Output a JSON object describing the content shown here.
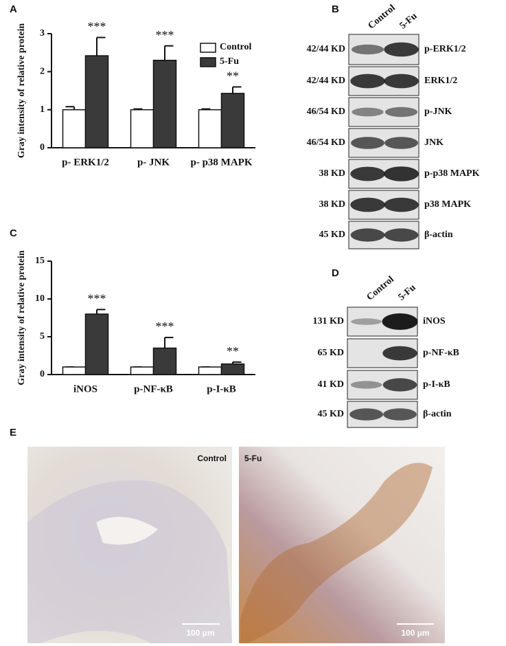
{
  "chart_data": [
    {
      "type": "bar",
      "ylabel": "Gray intensity of relative protein",
      "categories": [
        "p- ERK1/2",
        "p- JNK",
        "p- p38 MAPK"
      ],
      "series": [
        {
          "name": "Control",
          "color": "#ffffff",
          "values": [
            1.0,
            1.0,
            1.0
          ],
          "errors": [
            0.08,
            0.02,
            0.02
          ]
        },
        {
          "name": "5-Fu",
          "color": "#3a3a3a",
          "values": [
            2.42,
            2.3,
            1.43
          ],
          "errors": [
            0.48,
            0.38,
            0.17
          ],
          "annotations": [
            "***",
            "***",
            "**"
          ]
        }
      ],
      "ylim": [
        0,
        3
      ],
      "yticks": [
        0,
        1,
        2,
        3
      ],
      "legend": "top-right"
    },
    {
      "type": "bar",
      "ylabel": "Gray intensity of relative protein",
      "categories": [
        "iNOS",
        "p-NF-κB",
        "p-I-κB"
      ],
      "series": [
        {
          "name": "Control",
          "color": "#ffffff",
          "values": [
            1.0,
            1.0,
            1.0
          ],
          "errors": [
            0,
            0,
            0
          ]
        },
        {
          "name": "5-Fu",
          "color": "#3a3a3a",
          "values": [
            8.0,
            3.5,
            1.4
          ],
          "errors": [
            0.6,
            1.4,
            0.25
          ],
          "annotations": [
            "***",
            "***",
            "**"
          ]
        }
      ],
      "ylim": [
        0,
        15
      ],
      "yticks": [
        0,
        5,
        10,
        15
      ]
    }
  ],
  "panels": [
    "A",
    "B",
    "C",
    "D",
    "E"
  ],
  "blot_b": {
    "lanes": [
      "Control",
      "5-Fu"
    ],
    "rows": [
      {
        "size": "42/44 KD",
        "label": "p-ERK1/2"
      },
      {
        "size": "42/44 KD",
        "label": "ERK1/2"
      },
      {
        "size": "46/54 KD",
        "label": "p-JNK"
      },
      {
        "size": "46/54 KD",
        "label": "JNK"
      },
      {
        "size": "38 KD",
        "label": "p-p38 MAPK"
      },
      {
        "size": "38 KD",
        "label": "p38 MAPK"
      },
      {
        "size": "45 KD",
        "label": "β-actin"
      }
    ]
  },
  "blot_d": {
    "lanes": [
      "Control",
      "5-Fu"
    ],
    "rows": [
      {
        "size": "131 KD",
        "label": "iNOS"
      },
      {
        "size": "65 KD",
        "label": "p-NF-κB"
      },
      {
        "size": "41 KD",
        "label": "p-I-κB"
      },
      {
        "size": "45 KD",
        "label": "β-actin"
      }
    ]
  },
  "histology": [
    {
      "label": "Control",
      "scale": "100 μm"
    },
    {
      "label": "5-Fu",
      "scale": "100 μm"
    }
  ]
}
